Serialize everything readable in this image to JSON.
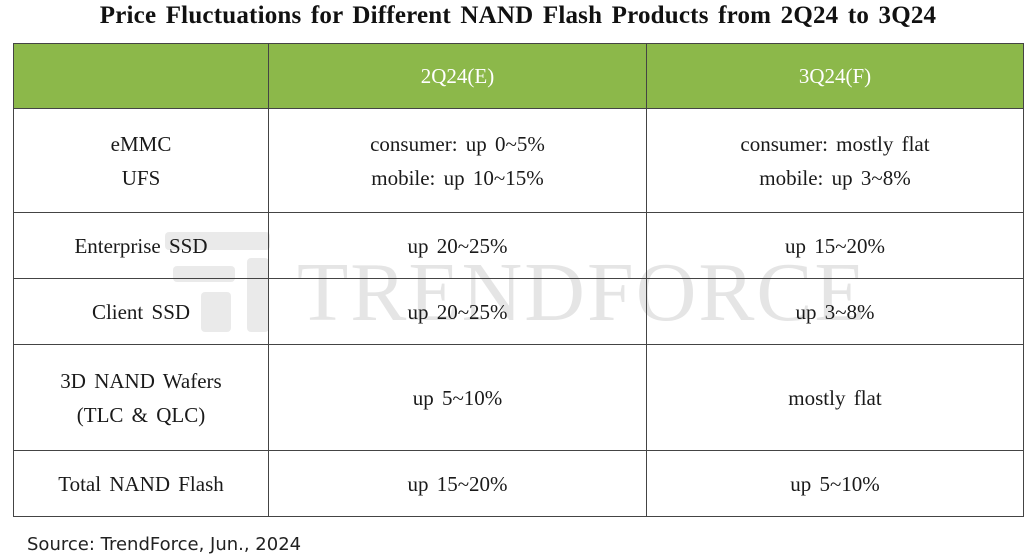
{
  "title": "Price Fluctuations for Different NAND Flash Products from 2Q24 to 3Q24",
  "watermark": "TRENDFORCE",
  "table": {
    "headers": [
      "",
      "2Q24(E)",
      "3Q24(F)"
    ],
    "rows": [
      {
        "product": [
          "eMMC",
          "UFS"
        ],
        "q2": [
          "consumer: up 0~5%",
          "mobile: up 10~15%"
        ],
        "q3": [
          "consumer: mostly flat",
          "mobile: up 3~8%"
        ]
      },
      {
        "product": [
          "Enterprise SSD"
        ],
        "q2": [
          "up 20~25%"
        ],
        "q3": [
          "up 15~20%"
        ]
      },
      {
        "product": [
          "Client SSD"
        ],
        "q2": [
          "up 20~25%"
        ],
        "q3": [
          "up 3~8%"
        ]
      },
      {
        "product": [
          "3D NAND Wafers",
          "(TLC & QLC)"
        ],
        "q2": [
          "up 5~10%"
        ],
        "q3": [
          "mostly flat"
        ]
      },
      {
        "product": [
          "Total NAND Flash"
        ],
        "q2": [
          "up 15~20%"
        ],
        "q3": [
          "up 5~10%"
        ]
      }
    ]
  },
  "source": "Source: TrendForce, Jun., 2024",
  "colors": {
    "header_bg": "#8cb84a",
    "header_text": "#ffffff",
    "border": "#444444"
  }
}
